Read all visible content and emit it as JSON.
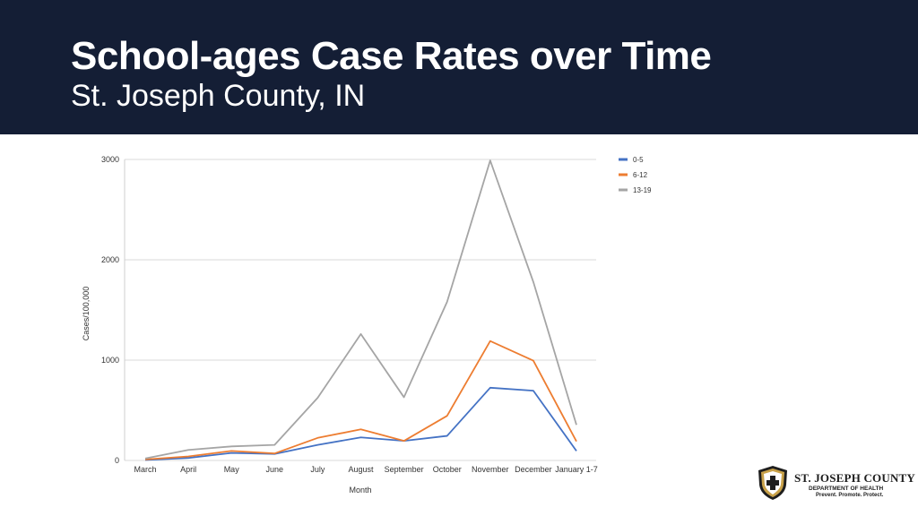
{
  "slide": {
    "title": "School-ages Case Rates over Time",
    "subtitle": "St. Joseph County, IN"
  },
  "logo": {
    "name": "ST. JOSEPH COUNTY",
    "department": "DEPARTMENT OF HEALTH",
    "tagline": "Prevent. Promote. Protect."
  },
  "colors": {
    "header_bg": "#141e35",
    "series_0_5": "#4472c4",
    "series_6_12": "#ed7d31",
    "series_13_19": "#a5a5a5"
  },
  "chart_data": {
    "type": "line",
    "categories": [
      "March",
      "April",
      "May",
      "June",
      "July",
      "August",
      "September",
      "October",
      "November",
      "December",
      "January 1-7"
    ],
    "series": [
      {
        "name": "0-5",
        "color": "#4472c4",
        "values": [
          5,
          25,
          75,
          65,
          155,
          230,
          195,
          245,
          725,
          695,
          95
        ]
      },
      {
        "name": "6-12",
        "color": "#ed7d31",
        "values": [
          10,
          40,
          95,
          70,
          225,
          310,
          195,
          445,
          1190,
          995,
          190
        ]
      },
      {
        "name": "13-19",
        "color": "#a5a5a5",
        "values": [
          20,
          105,
          140,
          155,
          625,
          1260,
          630,
          1580,
          2990,
          1780,
          355
        ]
      }
    ],
    "xlabel": "Month",
    "ylabel": "Cases/100,000",
    "ylim": [
      0,
      3000
    ],
    "yticks": [
      0,
      1000,
      2000,
      3000
    ],
    "grid": true,
    "legend": "top-right"
  }
}
